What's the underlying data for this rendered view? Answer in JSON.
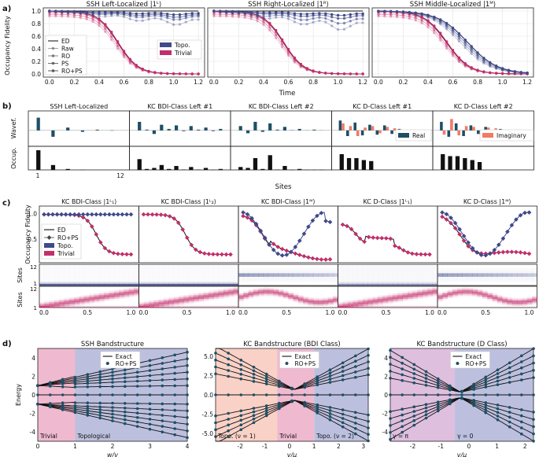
{
  "panel_letters": [
    "a)",
    "b)",
    "c)",
    "d)"
  ],
  "colors": {
    "topo": "#3f4a8a",
    "trivial": "#c42d6b",
    "exact": "#111111",
    "dot": "#1d4f66",
    "real": "#1d4f66",
    "imag": "#f27a66",
    "occ": "#111111"
  },
  "chart_data": [
    {
      "id": "a",
      "type": "line",
      "ylabel": "Occupancy Fidelity",
      "xlabel": "Time",
      "xticks": [
        "0.0",
        "0.2",
        "0.4",
        "0.6",
        "0.8",
        "1.0",
        "1.2"
      ],
      "yticks": [
        "0.0",
        "0.2",
        "0.4",
        "0.6",
        "0.8",
        "1.0"
      ],
      "xlim": [
        -0.05,
        1.25
      ],
      "ylim": [
        -0.05,
        1.05
      ],
      "legend_methods": [
        "ED",
        "Raw",
        "RO",
        "PS",
        "RO+PS"
      ],
      "legend_phases": [
        "Topo.",
        "Trivial"
      ],
      "subplots": [
        {
          "title": "SSH Left-Localized |1ᴸ⟩",
          "topo": {
            "raw_end": 0.78,
            "ro_end": 0.86,
            "ps_end": 0.9,
            "roPs_end": 0.94
          },
          "trivial": {
            "center": 0.55,
            "width": 0.08
          }
        },
        {
          "title": "SSH Right-Localized |1ᴿ⟩",
          "topo": {
            "raw_end": 0.7,
            "ro_end": 0.8,
            "ps_end": 0.88,
            "roPs_end": 0.93
          },
          "trivial": {
            "center": 0.56,
            "width": 0.08
          }
        },
        {
          "title": "SSH Middle-Localized |1ᴹ⟩",
          "topo": {
            "center": 0.72,
            "width": 0.12
          },
          "trivial": {
            "center": 0.55,
            "width": 0.09
          }
        }
      ]
    },
    {
      "id": "b",
      "type": "bar",
      "ylabel_top": "Wavef.",
      "ylabel_bottom": "Occup.",
      "xlabel": "Sites",
      "x_first": "1",
      "x_last": "12",
      "legend": [
        "Real",
        "Imaginary"
      ],
      "subplots": [
        {
          "title": "SSH Left-Localized",
          "real": [
            0.9,
            0,
            -0.45,
            0,
            0.2,
            0,
            -0.1,
            0,
            0.05,
            0,
            -0.02,
            0
          ],
          "imag": [],
          "occ": [
            1,
            0,
            0.25,
            0,
            0.05,
            0,
            0.01,
            0,
            0,
            0,
            0,
            0
          ]
        },
        {
          "title": "KC BDI-Class Left #1",
          "real": [
            0.6,
            0.05,
            -0.25,
            0.4,
            0.1,
            0.35,
            -0.05,
            0.3,
            0.05,
            0.2,
            -0.05,
            0.1
          ],
          "imag": [],
          "occ": [
            0.55,
            0.05,
            0.1,
            0.25,
            0.05,
            0.2,
            0.02,
            0.15,
            0.02,
            0.1,
            0.01,
            0.05
          ]
        },
        {
          "title": "KC BDI-Class Left #2",
          "real": [
            0.3,
            -0.2,
            0.6,
            -0.1,
            0.5,
            0.05,
            0.25,
            0.02,
            0.1,
            0.01,
            0.05,
            0.01
          ],
          "imag": [],
          "occ": [
            0.15,
            0.1,
            0.6,
            0.05,
            0.75,
            0.02,
            0.2,
            0.01,
            0.05,
            0.01,
            0.01,
            0.01
          ]
        },
        {
          "title": "KC D-Class Left #1",
          "real": [
            0.7,
            -0.4,
            0.55,
            -0.35,
            0.4,
            -0.3,
            0.35,
            -0.25,
            0.1,
            0,
            0,
            0
          ],
          "imag": [
            0.5,
            0.3,
            -0.4,
            0.2,
            0.3,
            -0.2,
            0.25,
            0.15,
            0.05,
            0,
            0,
            0
          ],
          "occ": [
            0.8,
            0.6,
            0.6,
            0.5,
            0.45,
            0,
            0,
            0,
            0,
            0,
            0,
            0
          ]
        },
        {
          "title": "KC D-Class Left #2",
          "real": [
            0.6,
            -0.45,
            0.5,
            -0.4,
            0.35,
            -0.25,
            0.25,
            -0.2,
            0.1,
            0,
            0,
            0
          ],
          "imag": [
            -0.3,
            0.8,
            -0.35,
            0.3,
            0.25,
            -0.3,
            0.2,
            0.15,
            0.05,
            0,
            0,
            0
          ],
          "occ": [
            0.8,
            0.7,
            0.7,
            0.6,
            0.5,
            0.4,
            0,
            0,
            0,
            0,
            0,
            0
          ]
        }
      ]
    },
    {
      "id": "c",
      "type": "line",
      "ylabel_top": "Occupancy Fidelity",
      "ylabel_mid": "Sites",
      "ylabel_bot": "Sites",
      "xticks": [
        "0.0",
        "0.5",
        "1.0"
      ],
      "yticks": [
        "0.5",
        "1.0"
      ],
      "site_ticks": [
        "1",
        "12"
      ],
      "legend": [
        "ED",
        "RO+PS",
        "Topo.",
        "Trivial"
      ],
      "subplots": [
        {
          "title": "KC BDI-Class |1ᴸ₁⟩",
          "topo": "flat",
          "trivial": "decay",
          "heat_topo": "edge_low",
          "heat_triv": "spread"
        },
        {
          "title": "KC BDI-Class |1ᴸ₂⟩",
          "topo": "none",
          "trivial": "decay2",
          "heat_topo": "edge_band",
          "heat_triv": "spread"
        },
        {
          "title": "KC BDI-Class |1ᴹ⟩",
          "topo": "osc",
          "trivial": "decay3",
          "heat_topo": "mid",
          "heat_triv": "mid_spread"
        },
        {
          "title": "KC D-Class |1ᴸ₁⟩",
          "topo": "none",
          "trivial": "decay4",
          "heat_topo": "edge_fade",
          "heat_triv": "spread"
        },
        {
          "title": "KC D-Class |1ᴹ⟩",
          "topo": "osc2",
          "trivial": "decay5",
          "heat_topo": "mid",
          "heat_triv": "mid_spread"
        }
      ]
    },
    {
      "id": "d",
      "type": "line",
      "ylabel": "Energy",
      "legend": [
        "Exact",
        "RO+PS"
      ],
      "subplots": [
        {
          "title": "SSH Bandstructure",
          "xlabel": "w/v",
          "xlim": [
            0,
            4
          ],
          "ylim": [
            -5,
            5
          ],
          "xticks": [
            "0",
            "1",
            "2",
            "3",
            "4"
          ],
          "yticks": [
            "-4",
            "-2",
            "0",
            "2",
            "4"
          ],
          "regions": [
            {
              "label": "Trivial",
              "from": 0,
              "to": 1,
              "color": "#e48ab0"
            },
            {
              "label": "Topological",
              "from": 1,
              "to": 4,
              "color": "#9096c8"
            }
          ]
        },
        {
          "title": "KC Bandstructure (BDI Class)",
          "xlabel": "v/μ",
          "xlim": [
            -3,
            3.2
          ],
          "ylim": [
            -6,
            6
          ],
          "xticks": [
            "-2",
            "-1",
            "0",
            "1",
            "2",
            "3"
          ],
          "yticks": [
            "-5.0",
            "-2.5",
            "0.0",
            "2.5",
            "5.0"
          ],
          "regions": [
            {
              "label": "Topo. (ν = 1)",
              "from": -3,
              "to": -0.5,
              "color": "#f7b3a0"
            },
            {
              "label": "Trivial",
              "from": -0.5,
              "to": 1,
              "color": "#e48ab0"
            },
            {
              "label": "Topo. (ν = 2)",
              "from": 1,
              "to": 3.2,
              "color": "#9096c8"
            }
          ]
        },
        {
          "title": "KC Bandstructure (D Class)",
          "xlabel": "v/μ",
          "xlim": [
            -2.8,
            2.3
          ],
          "ylim": [
            -5,
            5
          ],
          "xticks": [
            "-2",
            "-1",
            "0",
            "1",
            "2"
          ],
          "yticks": [
            "-4",
            "-2",
            "0",
            "2",
            "4"
          ],
          "regions": [
            {
              "label": "γ = π",
              "from": -2.8,
              "to": -0.5,
              "color": "#c895c8"
            },
            {
              "label": "γ = 0",
              "from": -0.5,
              "to": 2.3,
              "color": "#9096c8"
            }
          ]
        }
      ]
    }
  ]
}
